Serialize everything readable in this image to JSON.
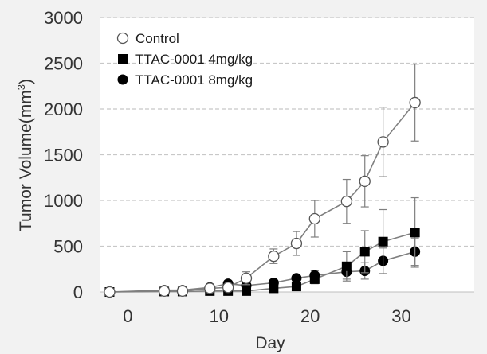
{
  "chart_data": {
    "type": "line",
    "title": "",
    "xlabel": "Day",
    "ylabel": "Tumor Volume(mm",
    "ylabel_sup": "3",
    "ylabel_end": ")",
    "xlim": [
      -3,
      38
    ],
    "ylim": [
      0,
      3000
    ],
    "xticks": [
      "0",
      "10",
      "20",
      "30"
    ],
    "yticks": [
      "0",
      "500",
      "1000",
      "1500",
      "2000",
      "2500",
      "3000"
    ],
    "grid": true,
    "legend_position": "top-left",
    "series": [
      {
        "name": "Control",
        "marker": "open-circle",
        "x": [
          -2,
          4,
          6,
          9,
          11,
          13,
          16,
          18.5,
          20.5,
          24,
          26,
          28,
          31.5
        ],
        "y": [
          0,
          10,
          10,
          40,
          50,
          150,
          390,
          530,
          800,
          990,
          1210,
          1640,
          2070
        ],
        "err": [
          0,
          0,
          0,
          0,
          0,
          70,
          80,
          130,
          200,
          240,
          280,
          380,
          420
        ]
      },
      {
        "name": "TTAC-0001 4mg/kg",
        "marker": "filled-square",
        "x": [
          -2,
          4,
          6,
          9,
          11,
          13,
          16,
          18.5,
          20.5,
          24,
          26,
          28,
          31.5
        ],
        "y": [
          0,
          5,
          5,
          10,
          10,
          10,
          40,
          60,
          140,
          280,
          440,
          550,
          650
        ],
        "err": [
          0,
          0,
          0,
          0,
          0,
          0,
          20,
          30,
          50,
          160,
          230,
          350,
          380
        ]
      },
      {
        "name": "TTAC-0001 8mg/kg",
        "marker": "filled-circle",
        "x": [
          -2,
          4,
          6,
          9,
          11,
          13,
          16,
          18.5,
          20.5,
          24,
          26,
          28,
          31.5
        ],
        "y": [
          0,
          20,
          20,
          50,
          90,
          70,
          100,
          150,
          180,
          220,
          230,
          340,
          440
        ],
        "err": [
          0,
          0,
          0,
          0,
          0,
          0,
          30,
          40,
          50,
          80,
          90,
          140,
          150
        ]
      }
    ],
    "colors": {
      "line": "#7f7f7f",
      "marker": "#000000",
      "grid": "#c8c8c8",
      "plot_bg": "#ffffff",
      "page_bg": "#f2f2f2"
    }
  }
}
